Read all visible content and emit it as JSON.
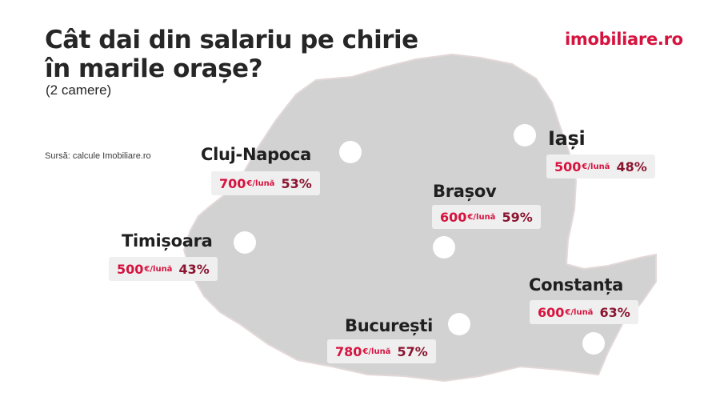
{
  "header": {
    "title_line1": "Cât dai din salariu pe chirie",
    "title_line2": "în marile orașe?",
    "subtitle": "(2 camere)",
    "source": "Sursă: calcule Imobiliare.ro",
    "logo": "imobiliare.ro"
  },
  "unit_label": "€/lună",
  "colors": {
    "accent": "#d6133f",
    "percent": "#8a1530",
    "map_fill": "#d2d2d2",
    "label_bg": "#efefef"
  },
  "cities": {
    "cluj": {
      "name": "Cluj-Napoca",
      "price": "700",
      "percent": "53%"
    },
    "iasi": {
      "name": "Iași",
      "price": "500",
      "percent": "48%"
    },
    "brasov": {
      "name": "Brașov",
      "price": "600",
      "percent": "59%"
    },
    "timisoara": {
      "name": "Timișoara",
      "price": "500",
      "percent": "43%"
    },
    "constanta": {
      "name": "Constanța",
      "price": "600",
      "percent": "63%"
    },
    "bucuresti": {
      "name": "București",
      "price": "780",
      "percent": "57%"
    }
  }
}
